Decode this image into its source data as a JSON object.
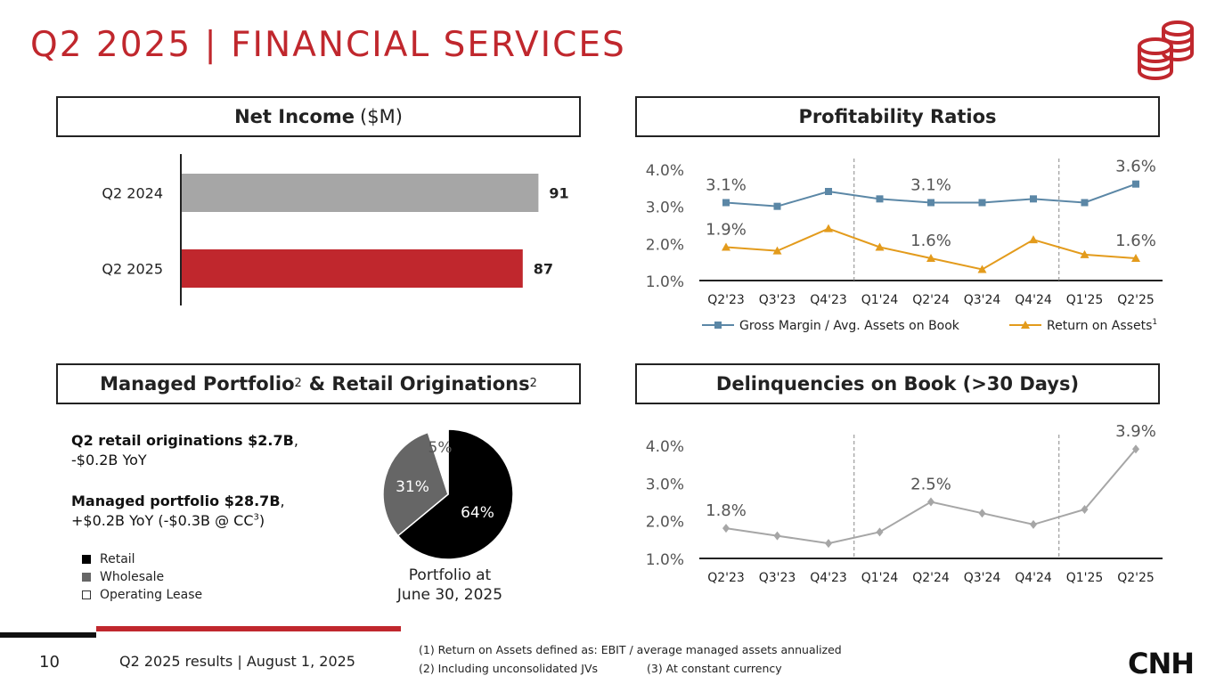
{
  "header": {
    "title": "Q2 2025 | FINANCIAL SERVICES"
  },
  "panels": {
    "net_income": {
      "title_bold": "Net Income",
      "title_light": "($M)"
    },
    "profitability": {
      "title": "Profitability Ratios"
    },
    "managed": {
      "title_a": "Managed Portfolio",
      "sup_a": "2",
      "title_b": "& Retail Originations",
      "sup_b": "2"
    },
    "delinquencies": {
      "title": "Delinquencies on Book (>30 Days)"
    }
  },
  "managed_text": {
    "line1_bold": "Q2 retail originations $2.7B",
    "line1_rest": ",",
    "line2": "-$0.2B YoY",
    "line3_bold": "Managed portfolio $28.7B",
    "line3_rest": ",",
    "line4_a": "+$0.2B YoY (-$0.3B @ CC",
    "line4_sup": "3",
    "line4_b": ")"
  },
  "pie_caption": {
    "line1": "Portfolio at",
    "line2": "June 30, 2025"
  },
  "footer": {
    "page": "10",
    "subtitle": "Q2 2025 results | August 1, 2025",
    "note1": "(1) Return on Assets defined as: EBIT / average managed assets annualized",
    "note2": "(2) Including unconsolidated JVs",
    "note3": "(3) At constant currency",
    "logo": "CNH"
  },
  "colors": {
    "brand_red": "#c0272d",
    "gray_bar": "#a6a6a6",
    "blue_line": "#5b87a6",
    "orange_line": "#e39b1c",
    "gray_line": "#a6a6a6"
  },
  "icons": {
    "coin_stack": "coins-icon",
    "logo": "cnh-logo"
  },
  "chart_data": [
    {
      "type": "bar",
      "orientation": "horizontal",
      "categories": [
        "Q2 2024",
        "Q2 2025"
      ],
      "values": [
        91,
        87
      ],
      "colors": [
        "#a6a6a6",
        "#c0272d"
      ],
      "data_labels": [
        "91",
        "87"
      ],
      "xlim": [
        0,
        100
      ]
    },
    {
      "type": "line",
      "categories": [
        "Q2'23",
        "Q3'23",
        "Q4'23",
        "Q1'24",
        "Q2'24",
        "Q3'24",
        "Q4'24",
        "Q1'25",
        "Q2'25"
      ],
      "y_ticks": [
        "1.0%",
        "2.0%",
        "3.0%",
        "4.0%"
      ],
      "ylim": [
        1.0,
        4.0
      ],
      "series": [
        {
          "name": "Gross Margin / Avg. Assets on Book",
          "color": "#5b87a6",
          "marker": "square",
          "values": [
            3.1,
            3.0,
            3.4,
            3.2,
            3.1,
            3.1,
            3.2,
            3.1,
            3.6
          ],
          "labels": [
            "3.1%",
            "",
            "",
            "",
            "3.1%",
            "",
            "",
            "",
            "3.6%"
          ]
        },
        {
          "name": "Return on Assets",
          "name_sup": "1",
          "color": "#e39b1c",
          "marker": "triangle",
          "values": [
            1.9,
            1.8,
            2.4,
            1.9,
            1.6,
            1.3,
            2.1,
            1.7,
            1.6
          ],
          "labels": [
            "1.9%",
            "",
            "",
            "",
            "1.6%",
            "",
            "",
            "",
            "1.6%"
          ]
        }
      ],
      "separators_after": [
        "Q4'23",
        "Q4'24"
      ]
    },
    {
      "type": "pie",
      "slices": [
        {
          "name": "Retail",
          "value": 64,
          "label": "64%",
          "color": "#000000"
        },
        {
          "name": "Wholesale",
          "value": 31,
          "label": "31%",
          "color": "#666666"
        },
        {
          "name": "Operating Lease",
          "value": 5,
          "label": "5%",
          "color": "#ffffff"
        }
      ],
      "legend": [
        "Retail",
        "Wholesale",
        "Operating Lease"
      ]
    },
    {
      "type": "line",
      "categories": [
        "Q2'23",
        "Q3'23",
        "Q4'23",
        "Q1'24",
        "Q2'24",
        "Q3'24",
        "Q4'24",
        "Q1'25",
        "Q2'25"
      ],
      "y_ticks": [
        "1.0%",
        "2.0%",
        "3.0%",
        "4.0%"
      ],
      "ylim": [
        1.0,
        4.0
      ],
      "series": [
        {
          "color": "#a6a6a6",
          "marker": "diamond",
          "values": [
            1.8,
            1.6,
            1.4,
            1.7,
            2.5,
            2.2,
            1.9,
            2.3,
            3.9
          ],
          "labels": [
            "1.8%",
            "",
            "",
            "",
            "2.5%",
            "",
            "",
            "",
            "3.9%"
          ]
        }
      ],
      "separators_after": [
        "Q4'23",
        "Q4'24"
      ]
    }
  ]
}
